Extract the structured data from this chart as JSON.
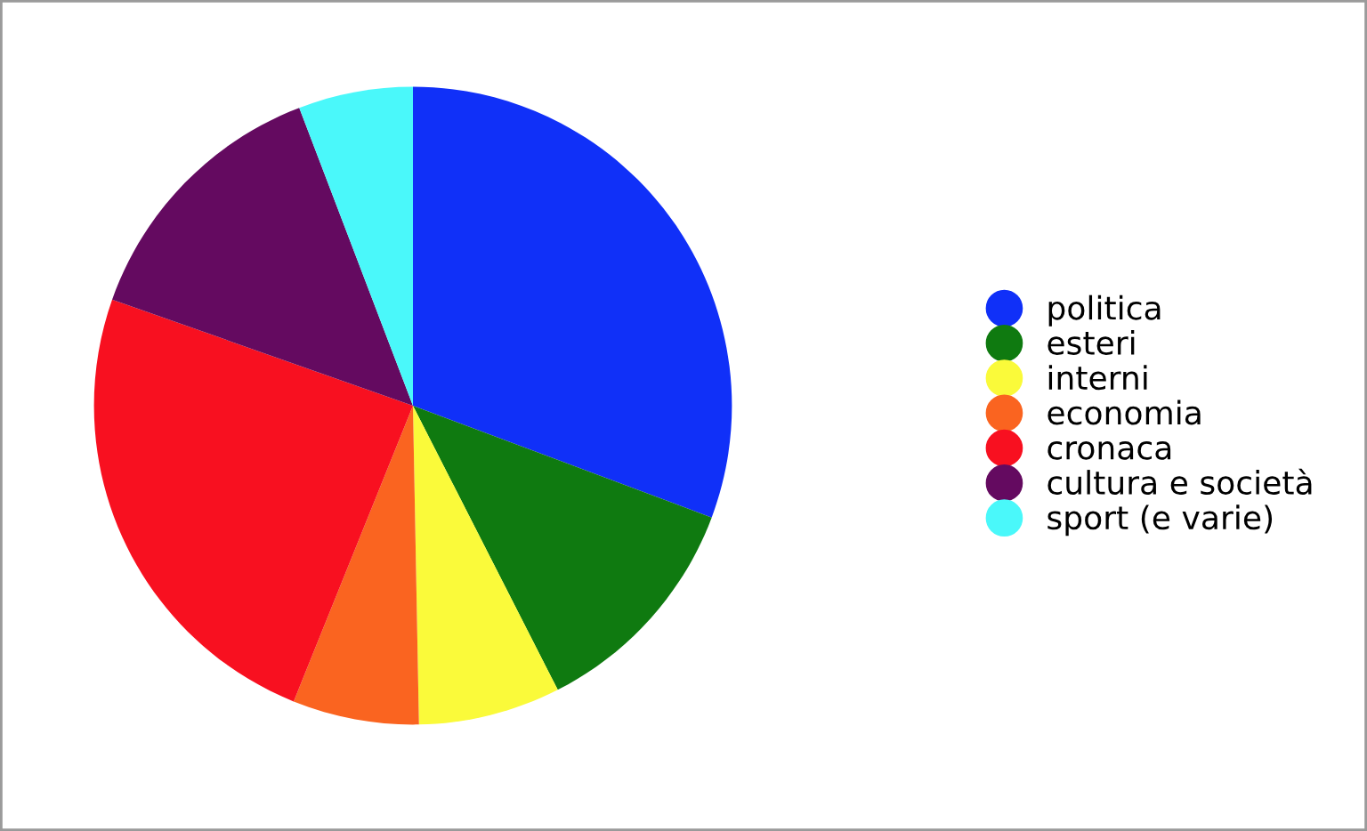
{
  "chart_data": {
    "type": "pie",
    "categories": [
      "politica",
      "esteri",
      "interni",
      "economia",
      "cronaca",
      "cultura e società",
      "sport (e varie)"
    ],
    "values": [
      30.7,
      11.8,
      7.2,
      6.4,
      24.3,
      13.8,
      5.8
    ],
    "colors": [
      "#1030f8",
      "#0f7a10",
      "#fafa3a",
      "#fa6420",
      "#f81020",
      "#640a60",
      "#4af8fa"
    ],
    "legend": "right"
  }
}
